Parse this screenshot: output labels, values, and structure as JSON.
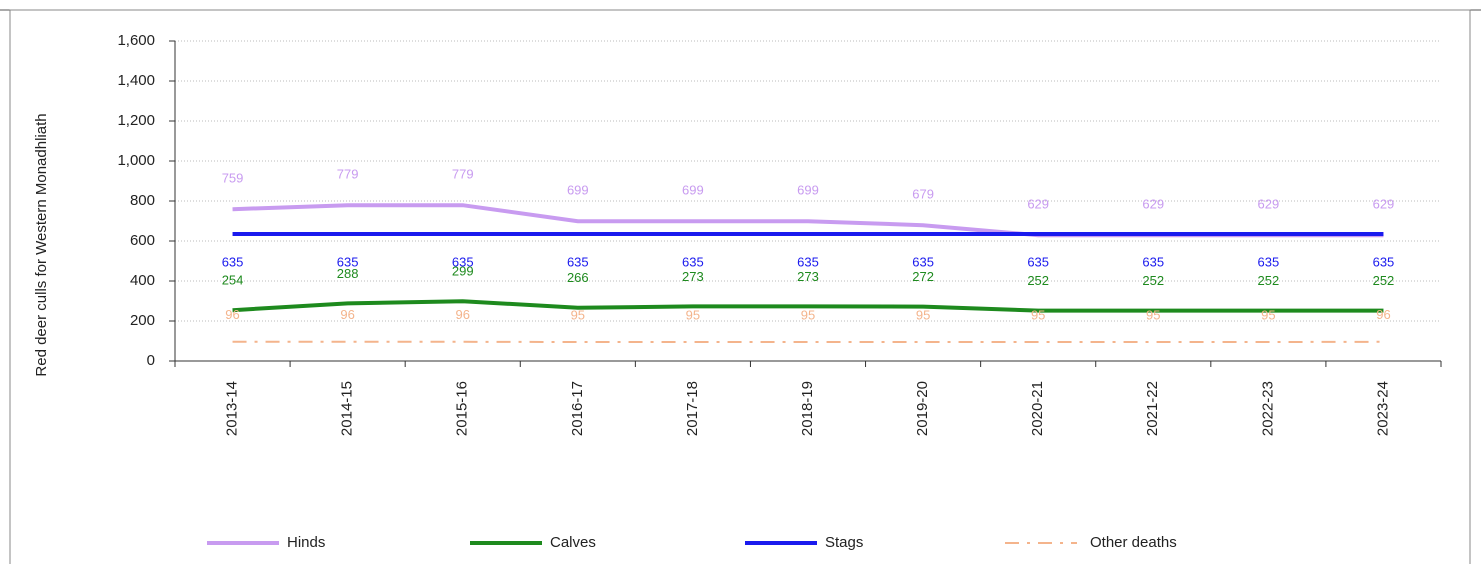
{
  "chart_data": {
    "type": "line",
    "y_axis_label": "Red deer culls for Western Monadhliath",
    "categories": [
      "2013-14",
      "2014-15",
      "2015-16",
      "2016-17",
      "2017-18",
      "2018-19",
      "2019-20",
      "2020-21",
      "2021-22",
      "2022-23",
      "2023-24"
    ],
    "series": [
      {
        "name": "Hinds",
        "color": "#c89bf0",
        "dash": "solid",
        "label_offset": -30,
        "values": [
          759,
          779,
          779,
          699,
          699,
          699,
          679,
          629,
          629,
          629,
          629
        ]
      },
      {
        "name": "Calves",
        "color": "#1e8a1e",
        "dash": "solid",
        "label_offset": -29,
        "values": [
          254,
          288,
          299,
          266,
          273,
          273,
          272,
          252,
          252,
          252,
          252
        ]
      },
      {
        "name": "Stags",
        "color": "#1a1aee",
        "dash": "solid",
        "label_offset": 29,
        "values": [
          635,
          635,
          635,
          635,
          635,
          635,
          635,
          635,
          635,
          635,
          635
        ]
      },
      {
        "name": "Other deaths",
        "color": "#f4b48c",
        "dash": "dashdot",
        "label_offset": -26,
        "values": [
          96,
          96,
          96,
          95,
          95,
          95,
          95,
          95,
          95,
          95,
          96
        ]
      }
    ],
    "ylim": [
      0,
      1600
    ],
    "yticks": [
      0,
      200,
      400,
      600,
      800,
      {
        "value": 1000,
        "label": "1,000"
      },
      {
        "value": 1200,
        "label": "1,200"
      },
      {
        "value": 1400,
        "label": "1,400"
      },
      {
        "value": 1600,
        "label": "1,600"
      }
    ],
    "grid": true,
    "legend": "bottom"
  }
}
